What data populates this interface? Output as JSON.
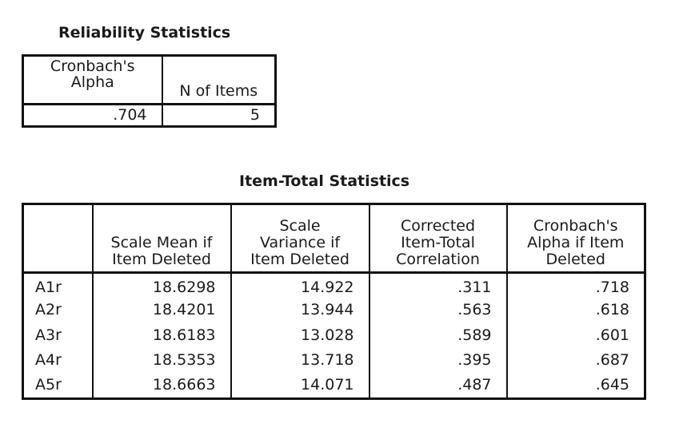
{
  "reliability": {
    "title": "Reliability Statistics",
    "headers": [
      "Cronbach's\nAlpha",
      "N of Items"
    ],
    "values": [
      ".704",
      "5"
    ]
  },
  "item_total": {
    "title": "Item-Total Statistics",
    "headers": [
      "",
      "Scale Mean if\nItem Deleted",
      "Scale\nVariance if\nItem Deleted",
      "Corrected\nItem-Total\nCorrelation",
      "Cronbach's\nAlpha if Item\nDeleted"
    ],
    "rows": [
      {
        "label": "A1r",
        "values": [
          "18.6298",
          "14.922",
          ".311",
          ".718"
        ]
      },
      {
        "label": "A2r",
        "values": [
          "18.4201",
          "13.944",
          ".563",
          ".618"
        ]
      },
      {
        "label": "A3r",
        "values": [
          "18.6183",
          "13.028",
          ".589",
          ".601"
        ]
      },
      {
        "label": "A4r",
        "values": [
          "18.5353",
          "13.718",
          ".395",
          ".687"
        ]
      },
      {
        "label": "A5r",
        "values": [
          "18.6663",
          "14.071",
          ".487",
          ".645"
        ]
      }
    ]
  }
}
